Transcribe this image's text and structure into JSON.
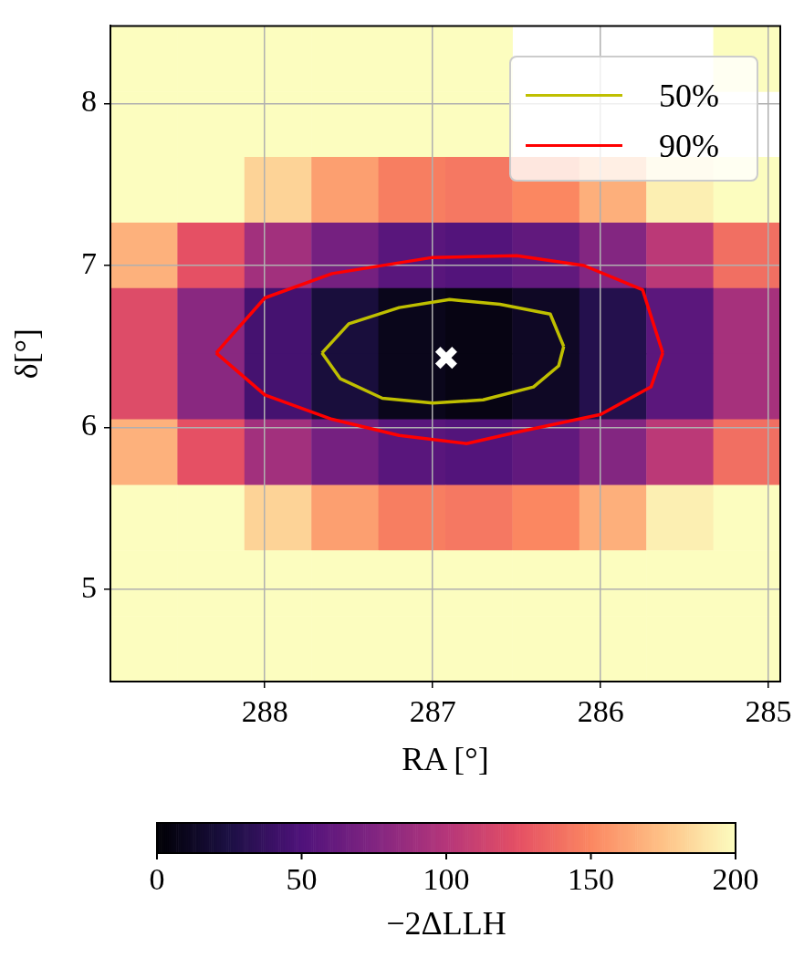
{
  "chart_data": [
    {
      "type": "heatmap",
      "clabel": "−2ΔLLH",
      "clim": [
        0,
        200
      ],
      "cticks": [
        0,
        50,
        100,
        150,
        200
      ],
      "categories": [
        null,
        null,
        null,
        null,
        null,
        null,
        null,
        null,
        null,
        null
      ],
      "y_categories": [
        null,
        null,
        null,
        null,
        null,
        null,
        null,
        null,
        null,
        null
      ],
      "cells": [
        [
          200,
          200,
          200,
          200,
          200,
          200,
          null,
          null,
          null,
          200
        ],
        [
          200,
          200,
          200,
          200,
          200,
          200,
          null,
          null,
          null,
          null
        ],
        [
          200,
          200,
          182,
          160,
          146,
          143,
          150,
          167,
          194,
          200
        ],
        [
          168,
          125,
          91,
          69,
          55,
          52,
          59,
          76,
          103,
          139
        ],
        [
          121,
          79,
          45,
          22,
          9,
          6,
          13,
          29,
          56,
          93
        ],
        [
          121,
          79,
          45,
          22,
          9,
          6,
          13,
          29,
          56,
          93
        ],
        [
          168,
          125,
          91,
          69,
          55,
          52,
          59,
          76,
          103,
          139
        ],
        [
          200,
          200,
          182,
          160,
          146,
          143,
          150,
          167,
          194,
          200
        ],
        [
          200,
          200,
          200,
          200,
          200,
          200,
          200,
          200,
          200,
          200
        ],
        [
          200,
          200,
          200,
          200,
          200,
          200,
          200,
          200,
          200,
          200
        ]
      ]
    },
    {
      "type": "line",
      "xlabel": "RA [°]",
      "ylabel": "δ[°]",
      "xlim": [
        288.92,
        284.93
      ],
      "xticks": [
        288,
        287,
        286,
        285
      ],
      "ylim": [
        4.43,
        8.48
      ],
      "yticks": [
        5,
        6,
        7,
        8
      ],
      "grid": true,
      "legend": "top right",
      "series": [
        {
          "type": "line",
          "name": "50%",
          "color": "#bfbf00",
          "x": [
            287.66,
            287.5,
            287.2,
            286.9,
            286.6,
            286.3,
            286.22
          ],
          "values": [
            6.46,
            6.64,
            6.74,
            6.79,
            6.76,
            6.7,
            6.5
          ]
        },
        {
          "type": "line",
          "color": "#bfbf00",
          "x": [
            287.66,
            287.55,
            287.3,
            287.0,
            286.7,
            286.4,
            286.25,
            286.22
          ],
          "values": [
            6.46,
            6.3,
            6.18,
            6.15,
            6.17,
            6.25,
            6.38,
            6.5
          ]
        },
        {
          "type": "line",
          "name": "90%",
          "color": "#ff0000",
          "x": [
            288.29,
            288.0,
            287.6,
            287.0,
            286.5,
            286.1,
            285.75,
            285.63
          ],
          "values": [
            6.46,
            6.8,
            6.95,
            7.05,
            7.06,
            7.0,
            6.85,
            6.46
          ]
        },
        {
          "type": "line",
          "color": "#ff0000",
          "x": [
            288.29,
            288.0,
            287.6,
            287.2,
            286.8,
            286.5,
            286.0,
            285.7,
            285.63
          ],
          "values": [
            6.46,
            6.2,
            6.05,
            5.95,
            5.9,
            5.97,
            6.08,
            6.25,
            6.46
          ]
        },
        {
          "type": "scatter",
          "color": "#ffffff",
          "marker": "cross",
          "x": [
            286.92
          ],
          "values": [
            6.43
          ]
        }
      ]
    }
  ]
}
